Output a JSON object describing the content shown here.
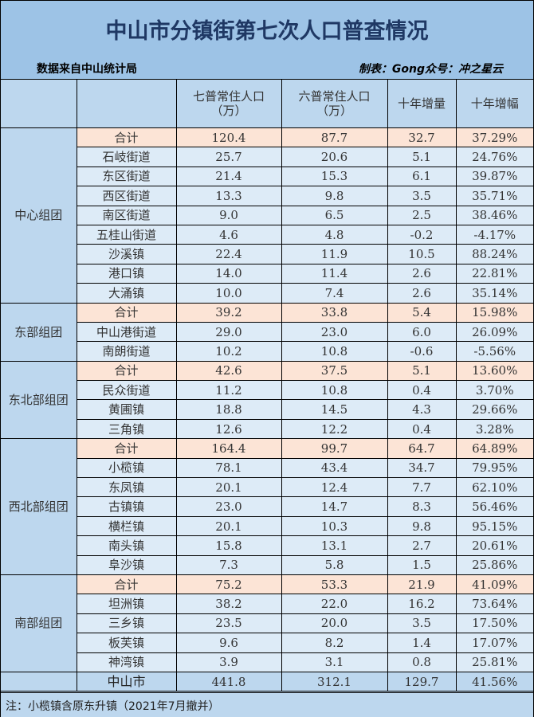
{
  "title": "中山市分镇街第七次人口普查情况",
  "source": "数据来自中山统计局",
  "credit": "制表：Gong众号：冲之星云",
  "columns": {
    "group": "",
    "name": "",
    "census7": "七普常住人口（万）",
    "census6": "六普常住人口（万）",
    "growth": "十年增量",
    "growth_rate": "十年增幅"
  },
  "groups": [
    {
      "name": "中心组团",
      "rows": [
        {
          "name": "合计",
          "c7": "120.4",
          "c6": "87.7",
          "inc": "32.7",
          "pct": "37.29%",
          "subtotal": true
        },
        {
          "name": "石岐街道",
          "c7": "25.7",
          "c6": "20.6",
          "inc": "5.1",
          "pct": "24.76%"
        },
        {
          "name": "东区街道",
          "c7": "21.4",
          "c6": "15.3",
          "inc": "6.1",
          "pct": "39.87%"
        },
        {
          "name": "西区街道",
          "c7": "13.3",
          "c6": "9.8",
          "inc": "3.5",
          "pct": "35.71%"
        },
        {
          "name": "南区街道",
          "c7": "9.0",
          "c6": "6.5",
          "inc": "2.5",
          "pct": "38.46%"
        },
        {
          "name": "五桂山街道",
          "c7": "4.6",
          "c6": "4.8",
          "inc": "-0.2",
          "pct": "-4.17%"
        },
        {
          "name": "沙溪镇",
          "c7": "22.4",
          "c6": "11.9",
          "inc": "10.5",
          "pct": "88.24%"
        },
        {
          "name": "港口镇",
          "c7": "14.0",
          "c6": "11.4",
          "inc": "2.6",
          "pct": "22.81%"
        },
        {
          "name": "大涌镇",
          "c7": "10.0",
          "c6": "7.4",
          "inc": "2.6",
          "pct": "35.14%"
        }
      ]
    },
    {
      "name": "东部组团",
      "rows": [
        {
          "name": "合计",
          "c7": "39.2",
          "c6": "33.8",
          "inc": "5.4",
          "pct": "15.98%",
          "subtotal": true
        },
        {
          "name": "中山港街道",
          "c7": "29.0",
          "c6": "23.0",
          "inc": "6.0",
          "pct": "26.09%"
        },
        {
          "name": "南朗街道",
          "c7": "10.2",
          "c6": "10.8",
          "inc": "-0.6",
          "pct": "-5.56%"
        }
      ]
    },
    {
      "name": "东北部组团",
      "rows": [
        {
          "name": "合计",
          "c7": "42.6",
          "c6": "37.5",
          "inc": "5.1",
          "pct": "13.60%",
          "subtotal": true
        },
        {
          "name": "民众街道",
          "c7": "11.2",
          "c6": "10.8",
          "inc": "0.4",
          "pct": "3.70%"
        },
        {
          "name": "黄圃镇",
          "c7": "18.8",
          "c6": "14.5",
          "inc": "4.3",
          "pct": "29.66%"
        },
        {
          "name": "三角镇",
          "c7": "12.6",
          "c6": "12.2",
          "inc": "0.4",
          "pct": "3.28%"
        }
      ]
    },
    {
      "name": "西北部组团",
      "rows": [
        {
          "name": "合计",
          "c7": "164.4",
          "c6": "99.7",
          "inc": "64.7",
          "pct": "64.89%",
          "subtotal": true
        },
        {
          "name": "小榄镇",
          "c7": "78.1",
          "c6": "43.4",
          "inc": "34.7",
          "pct": "79.95%"
        },
        {
          "name": "东凤镇",
          "c7": "20.1",
          "c6": "12.4",
          "inc": "7.7",
          "pct": "62.10%"
        },
        {
          "name": "古镇镇",
          "c7": "23.0",
          "c6": "14.7",
          "inc": "8.3",
          "pct": "56.46%"
        },
        {
          "name": "横栏镇",
          "c7": "20.1",
          "c6": "10.3",
          "inc": "9.8",
          "pct": "95.15%"
        },
        {
          "name": "南头镇",
          "c7": "15.8",
          "c6": "13.1",
          "inc": "2.7",
          "pct": "20.61%"
        },
        {
          "name": "阜沙镇",
          "c7": "7.3",
          "c6": "5.8",
          "inc": "1.5",
          "pct": "25.86%"
        }
      ]
    },
    {
      "name": "南部组团",
      "rows": [
        {
          "name": "合计",
          "c7": "75.2",
          "c6": "53.3",
          "inc": "21.9",
          "pct": "41.09%",
          "subtotal": true
        },
        {
          "name": "坦洲镇",
          "c7": "38.2",
          "c6": "22.0",
          "inc": "16.2",
          "pct": "73.64%"
        },
        {
          "name": "三乡镇",
          "c7": "23.5",
          "c6": "20.0",
          "inc": "3.5",
          "pct": "17.50%"
        },
        {
          "name": "板芙镇",
          "c7": "9.6",
          "c6": "8.2",
          "inc": "1.4",
          "pct": "17.07%"
        },
        {
          "name": "神湾镇",
          "c7": "3.9",
          "c6": "3.1",
          "inc": "0.8",
          "pct": "25.81%"
        }
      ]
    }
  ],
  "total": {
    "name": "中山市",
    "c7": "441.8",
    "c6": "312.1",
    "inc": "129.7",
    "pct": "41.56%"
  },
  "note": "注：小榄镇含原东升镇（2021年7月撤并）",
  "colors": {
    "title_bg": "#9dc3e6",
    "title_text": "#1f3864",
    "header_bg": "#bdd7ee",
    "row_bg": "#ddebf7",
    "subtotal_bg": "#fce4d6"
  }
}
